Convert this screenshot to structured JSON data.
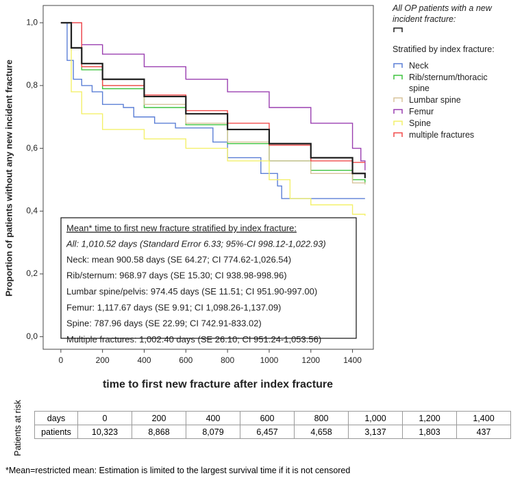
{
  "chart_data": {
    "type": "line",
    "y_label": "Proportion of patients without any new incident fracture",
    "x_label": "time to first new fracture after index fracture",
    "xlim": [
      -85,
      1500
    ],
    "ylim": [
      -0.04,
      1.055
    ],
    "xticks": [
      0,
      200,
      400,
      600,
      800,
      1000,
      1200,
      1400
    ],
    "yticks": [
      {
        "value": 0,
        "label": "0,0"
      },
      {
        "value": 0.2,
        "label": "0,2"
      },
      {
        "value": 0.4,
        "label": "0,4"
      },
      {
        "value": 0.6,
        "label": "0,6"
      },
      {
        "value": 0.8,
        "label": "0,8"
      },
      {
        "value": 1,
        "label": "1,0"
      }
    ],
    "legend_subtitle": "Stratified by index fracture:",
    "series": [
      {
        "name": "All OP patients with a new incident fracture:",
        "color": "#1e1e1e",
        "x": [
          0,
          50,
          100,
          200,
          400,
          600,
          800,
          1000,
          1200,
          1400,
          1460
        ],
        "values": [
          1.0,
          0.92,
          0.87,
          0.82,
          0.765,
          0.71,
          0.66,
          0.615,
          0.57,
          0.52,
          0.505
        ]
      },
      {
        "name": "Neck",
        "color": "#5b7fd6",
        "x": [
          0,
          30,
          60,
          100,
          150,
          200,
          300,
          350,
          450,
          550,
          730,
          800,
          960,
          1040,
          1060,
          1460
        ],
        "values": [
          1.0,
          0.88,
          0.82,
          0.8,
          0.78,
          0.74,
          0.73,
          0.7,
          0.68,
          0.665,
          0.62,
          0.57,
          0.52,
          0.48,
          0.44,
          0.44
        ]
      },
      {
        "name": "Rib/sternum/thoracic spine",
        "color": "#3ec43e",
        "x": [
          0,
          100,
          200,
          400,
          600,
          800,
          1000,
          1200,
          1400,
          1460
        ],
        "values": [
          1.0,
          0.85,
          0.79,
          0.73,
          0.675,
          0.615,
          0.56,
          0.53,
          0.5,
          0.49
        ]
      },
      {
        "name": "Lumbar spine",
        "color": "#d8c39a",
        "x": [
          0,
          100,
          200,
          400,
          600,
          800,
          1000,
          1200,
          1400,
          1460
        ],
        "values": [
          1.0,
          0.86,
          0.8,
          0.74,
          0.68,
          0.62,
          0.56,
          0.52,
          0.49,
          0.485
        ]
      },
      {
        "name": "Femur",
        "color": "#9a3fb0",
        "x": [
          0,
          100,
          200,
          400,
          600,
          800,
          1000,
          1200,
          1400,
          1440,
          1460
        ],
        "values": [
          1.0,
          0.93,
          0.9,
          0.86,
          0.82,
          0.78,
          0.73,
          0.68,
          0.6,
          0.56,
          0.53
        ]
      },
      {
        "name": "Spine",
        "color": "#f4f06a",
        "x": [
          0,
          50,
          100,
          200,
          400,
          600,
          800,
          1000,
          1100,
          1200,
          1400,
          1460
        ],
        "values": [
          1.0,
          0.78,
          0.71,
          0.66,
          0.63,
          0.6,
          0.56,
          0.5,
          0.44,
          0.42,
          0.39,
          0.385
        ]
      },
      {
        "name": "multiple fractures",
        "color": "#f24a4a",
        "x": [
          0,
          100,
          200,
          400,
          600,
          800,
          1000,
          1200,
          1400,
          1460
        ],
        "values": [
          1.0,
          0.86,
          0.8,
          0.77,
          0.72,
          0.68,
          0.61,
          0.56,
          0.555,
          0.555
        ]
      }
    ],
    "annotation": {
      "title": "Mean* time to first new fracture stratified by index fracture:",
      "all": "All: 1,010.52 days (Standard Error 6.33; 95%-CI 998.12-1,022.93)",
      "lines": [
        "Neck: mean 900.58 days (SE 64.27; CI 774.62-1,026.54)",
        "Rib/sternum: 968.97 days (SE 15.30; CI 938.98-998.96)",
        "Lumbar spine/pelvis: 974.45 days (SE 11.51; CI 951.90-997.00)",
        "Femur: 1,117.67 days (SE 9.91; CI 1,098.26-1,137.09)",
        "Spine: 787.96 days (SE 22.99; CI 742.91-833.02)",
        "Multiple fractures: 1,002.40 days (SE 26.10; CI 951.24-1,053.56)"
      ]
    }
  },
  "risk_table": {
    "label": "Patients at risk",
    "rows": [
      [
        "days",
        "0",
        "200",
        "400",
        "600",
        "800",
        "1,000",
        "1,200",
        "1,400"
      ],
      [
        "patients",
        "10,323",
        "8,868",
        "8,079",
        "6,457",
        "4,658",
        "3,137",
        "1,803",
        "437"
      ]
    ]
  },
  "footnote": "*Mean=restricted mean: Estimation is limited to the largest survival time if it is not censored"
}
